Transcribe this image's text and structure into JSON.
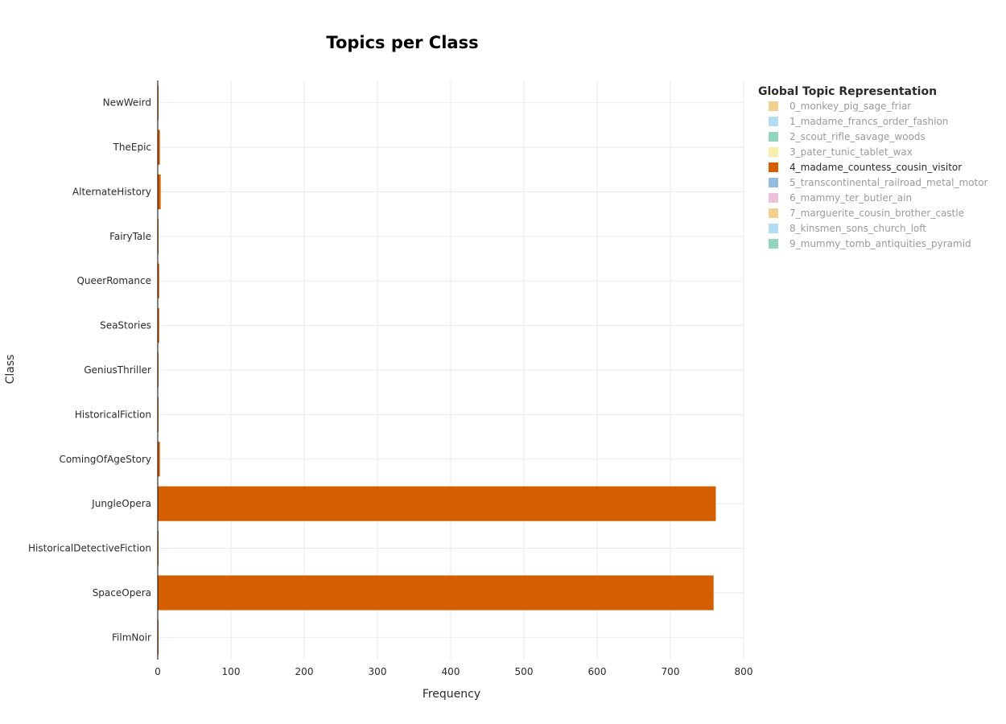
{
  "chart_data": {
    "type": "bar",
    "orientation": "horizontal",
    "title": "Topics per Class",
    "xlabel": "Frequency",
    "ylabel": "Class",
    "xlim": [
      0,
      800
    ],
    "x_ticks": [
      0,
      100,
      200,
      300,
      400,
      500,
      600,
      700,
      800
    ],
    "grid": true,
    "legend_title": "Global Topic Representation",
    "legend_position": "right",
    "categories": [
      "NewWeird",
      "TheEpic",
      "AlternateHistory",
      "FairyTale",
      "QueerRomance",
      "SeaStories",
      "GeniusThriller",
      "HistoricalFiction",
      "ComingOfAgeStory",
      "JungleOpera",
      "HistoricalDetectiveFiction",
      "SpaceOpera",
      "FilmNoir"
    ],
    "legend": [
      {
        "name": "0_monkey_pig_sage_friar",
        "color": "#F0C97D",
        "visible": false
      },
      {
        "name": "1_madame_francs_order_fashion",
        "color": "#A6D7F2",
        "visible": false
      },
      {
        "name": "2_scout_rifle_savage_woods",
        "color": "#7FCDB0",
        "visible": false
      },
      {
        "name": "3_pater_tunic_tablet_wax",
        "color": "#F8EC9F",
        "visible": false
      },
      {
        "name": "4_madame_countess_cousin_visitor",
        "color": "#D55E00",
        "visible": true
      },
      {
        "name": "5_transcontinental_railroad_metal_motor",
        "color": "#7FB2DA",
        "visible": false
      },
      {
        "name": "6_mammy_ter_butler_ain",
        "color": "#E6B9D3",
        "visible": false
      },
      {
        "name": "7_marguerite_cousin_brother_castle",
        "color": "#F0C97D",
        "visible": false
      },
      {
        "name": "8_kinsmen_sons_church_loft",
        "color": "#A6D7F2",
        "visible": false
      },
      {
        "name": "9_mummy_tomb_antiquities_pyramid",
        "color": "#7FCDB0",
        "visible": false
      }
    ],
    "series": [
      {
        "name": "4_madame_countess_cousin_visitor",
        "color": "#D55E00",
        "values": [
          1,
          3,
          4,
          1,
          2,
          2,
          1,
          1,
          3,
          762,
          1,
          759,
          1
        ]
      }
    ]
  }
}
